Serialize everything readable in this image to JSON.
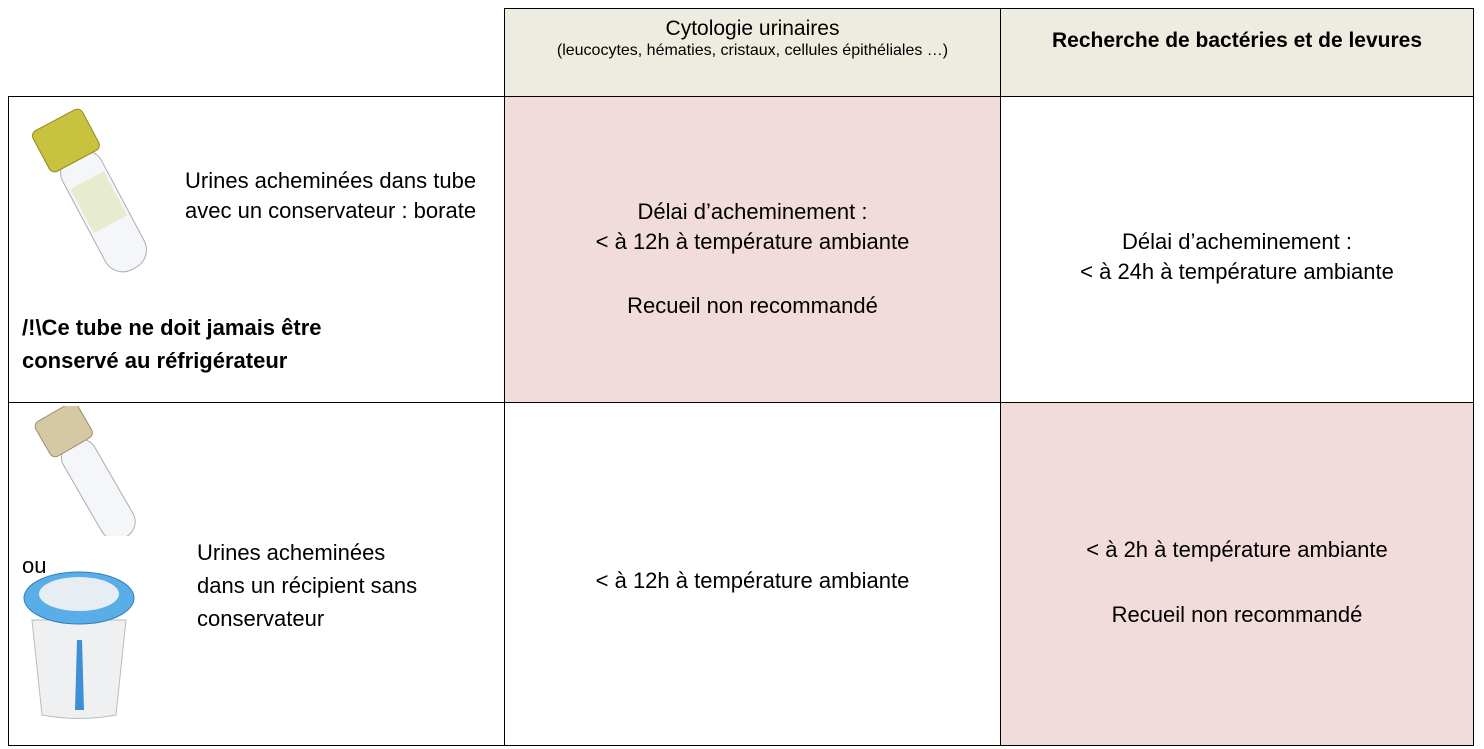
{
  "table": {
    "header": [
      {
        "title": "Cytologie urinaires",
        "subtitle": "(leucocytes, hématies, cristaux, cellules épithéliales …)"
      },
      {
        "title": "Recherche de bactéries et de levures"
      }
    ],
    "rows": [
      {
        "label": "Urines acheminées dans tube avec un conservateur : borate",
        "warning": "/!\\Ce tube ne doit jamais être conservé au réfrigérateur",
        "cells": [
          [
            "Délai d’acheminement :",
            "< à 12h à température ambiante",
            "Recueil non recommandé"
          ],
          [
            "Délai d’acheminement :",
            "< à 24h à température ambiante"
          ]
        ]
      },
      {
        "or": "ou",
        "label": "Urines acheminées dans un récipient sans conservateur",
        "cells": [
          [
            "< à 12h à température ambiante"
          ],
          [
            "< à 2h à température ambiante",
            "Recueil non recommandé"
          ]
        ]
      }
    ]
  }
}
